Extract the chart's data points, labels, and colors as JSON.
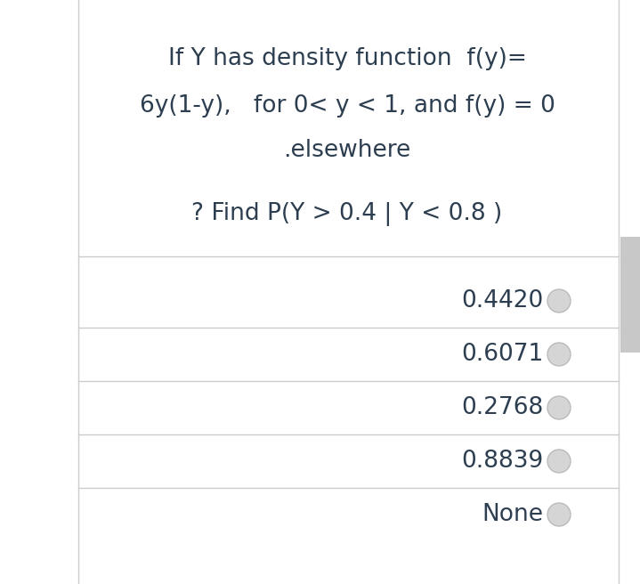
{
  "background_color": "#ffffff",
  "question_line1": "If Y has density function  f(y)=",
  "question_line2": "6y(1-y),   for 0< y < 1, and f(y) = 0",
  "question_line3": ".elsewhere",
  "question_line4": "? Find P(Y > 0.4 | Y < 0.8 )",
  "options": [
    "0.4420",
    "0.6071",
    "0.2768",
    "0.8839",
    "None"
  ],
  "text_color": "#2c3e50",
  "line_color": "#cccccc",
  "radio_fill": "#d5d5d5",
  "radio_edge": "#bbbbbb",
  "scrollbar_color": "#c8c8c8",
  "left_border_color": "#cccccc",
  "question_fontsize": 19,
  "option_fontsize": 19
}
